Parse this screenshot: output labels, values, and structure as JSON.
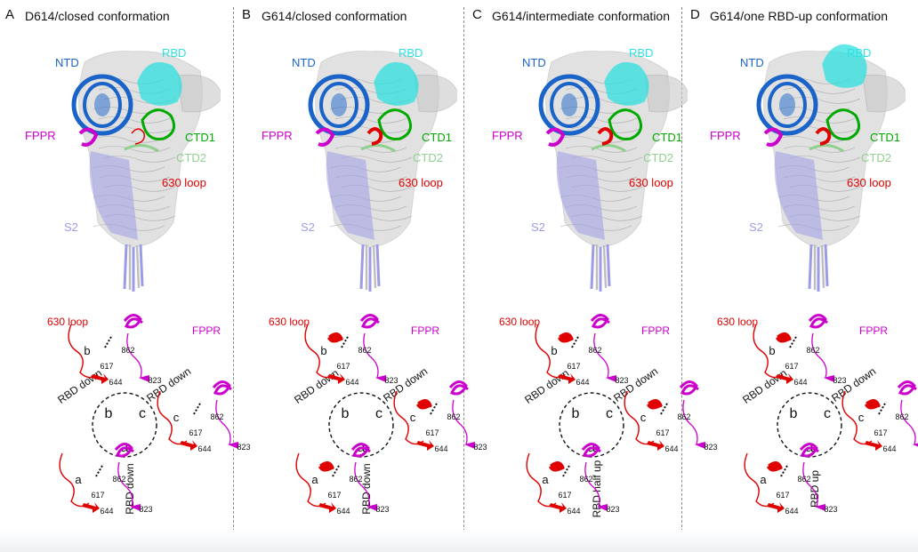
{
  "panels": [
    {
      "letter": "A",
      "title": "D614/closed conformation",
      "labels": {
        "ntd": "NTD",
        "rbd": "RBD",
        "fppr": "FPPR",
        "ctd1": "CTD1",
        "ctd2": "CTD2",
        "loop": "630 loop",
        "s2": "S2"
      },
      "scheme": {
        "loop_label": "630 loop",
        "fppr_label": "FPPR",
        "protomers": [
          "a",
          "b",
          "c"
        ],
        "sub_labels": [
          "a",
          "b",
          "c"
        ],
        "rbd_labels": [
          "RBD down",
          "RBD down",
          "RBD down"
        ],
        "residues": {
          "r617": "617",
          "r644": "644",
          "r862": "862",
          "r823": "823"
        }
      }
    },
    {
      "letter": "B",
      "title": "G614/closed conformation",
      "labels": {
        "ntd": "NTD",
        "rbd": "RBD",
        "fppr": "FPPR",
        "ctd1": "CTD1",
        "ctd2": "CTD2",
        "loop": "630 loop",
        "s2": "S2"
      },
      "scheme": {
        "loop_label": "630 loop",
        "fppr_label": "FPPR",
        "protomers": [
          "a",
          "b",
          "c"
        ],
        "sub_labels": [
          "a",
          "b",
          "c"
        ],
        "rbd_labels": [
          "RBD down",
          "RBD down",
          "RBD down"
        ],
        "residues": {
          "r617": "617",
          "r644": "644",
          "r862": "862",
          "r823": "823"
        }
      }
    },
    {
      "letter": "C",
      "title": "G614/intermediate conformation",
      "labels": {
        "ntd": "NTD",
        "rbd": "RBD",
        "fppr": "FPPR",
        "ctd1": "CTD1",
        "ctd2": "CTD2",
        "loop": "630 loop",
        "s2": "S2"
      },
      "scheme": {
        "loop_label": "630 loop",
        "fppr_label": "FPPR",
        "protomers": [
          "a",
          "b",
          "c"
        ],
        "sub_labels": [
          "a",
          "b",
          "c"
        ],
        "rbd_labels": [
          "RBD half up",
          "RBD down",
          "RBD down"
        ],
        "residues": {
          "r617": "617",
          "r644": "644",
          "r862": "862",
          "r823": "823"
        }
      }
    },
    {
      "letter": "D",
      "title": "G614/one RBD-up conformation",
      "labels": {
        "ntd": "NTD",
        "rbd": "RBD",
        "fppr": "FPPR",
        "ctd1": "CTD1",
        "ctd2": "CTD2",
        "loop": "630 loop",
        "s2": "S2"
      },
      "scheme": {
        "loop_label": "630 loop",
        "fppr_label": "FPPR",
        "protomers": [
          "a",
          "b",
          "c"
        ],
        "sub_labels": [
          "a",
          "b",
          "c"
        ],
        "rbd_labels": [
          "RBD up",
          "RBD down",
          "RBD down"
        ],
        "residues": {
          "r617": "617",
          "r644": "644",
          "r862": "862",
          "r823": "823"
        }
      }
    }
  ],
  "colors": {
    "ntd": "#1a63c9",
    "rbd": "#2fe0e0",
    "fppr": "#cc00cc",
    "ctd1": "#00aa00",
    "ctd2": "#8fd08f",
    "loop": "#e00000",
    "s2": "#9c9ce6",
    "spike": "#c9c9c9"
  }
}
